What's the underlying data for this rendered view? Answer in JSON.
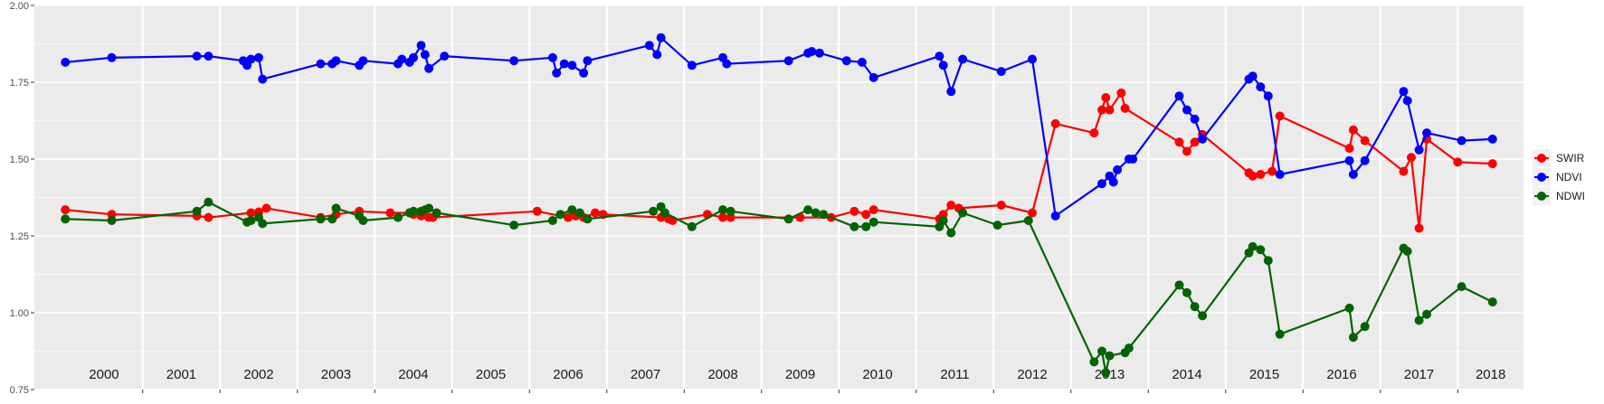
{
  "chart_data": {
    "type": "line",
    "title": "",
    "xlabel": "",
    "ylabel": "",
    "x_unit": "year (decimal)",
    "xlim": [
      1999.6,
      2018.85
    ],
    "ylim": [
      0.75,
      2.0
    ],
    "y_ticks": [
      0.75,
      1.0,
      1.25,
      1.5,
      1.75,
      2.0
    ],
    "y_tick_labels": [
      "0.75",
      "1.00",
      "1.25",
      "1.50",
      "1.75",
      "2.00"
    ],
    "year_labels": [
      "2000",
      "2001",
      "2002",
      "2003",
      "2004",
      "2005",
      "2006",
      "2007",
      "2008",
      "2009",
      "2010",
      "2011",
      "2012",
      "2013",
      "2014",
      "2015",
      "2016",
      "2017",
      "2018"
    ],
    "year_boundaries": [
      2001,
      2002,
      2003,
      2004,
      2005,
      2006,
      2007,
      2008,
      2009,
      2010,
      2011,
      2012,
      2013,
      2014,
      2015,
      2016,
      2017,
      2018
    ],
    "grid": true,
    "legend_position": "right",
    "series": [
      {
        "name": "SWIR",
        "color": "#ff0000",
        "points": [
          [
            2000.0,
            1.335
          ],
          [
            2000.6,
            1.32
          ],
          [
            2001.7,
            1.315
          ],
          [
            2001.85,
            1.31
          ],
          [
            2002.4,
            1.325
          ],
          [
            2002.5,
            1.328
          ],
          [
            2002.6,
            1.34
          ],
          [
            2003.3,
            1.31
          ],
          [
            2003.5,
            1.32
          ],
          [
            2003.8,
            1.33
          ],
          [
            2004.2,
            1.325
          ],
          [
            2004.45,
            1.325
          ],
          [
            2004.5,
            1.32
          ],
          [
            2004.6,
            1.315
          ],
          [
            2004.7,
            1.31
          ],
          [
            2004.75,
            1.31
          ],
          [
            2006.1,
            1.33
          ],
          [
            2006.5,
            1.31
          ],
          [
            2006.6,
            1.315
          ],
          [
            2006.7,
            1.31
          ],
          [
            2006.85,
            1.325
          ],
          [
            2006.95,
            1.32
          ],
          [
            2007.7,
            1.31
          ],
          [
            2007.8,
            1.305
          ],
          [
            2007.85,
            1.3
          ],
          [
            2008.3,
            1.32
          ],
          [
            2008.5,
            1.31
          ],
          [
            2008.6,
            1.31
          ],
          [
            2009.5,
            1.31
          ],
          [
            2009.9,
            1.31
          ],
          [
            2010.2,
            1.33
          ],
          [
            2010.35,
            1.32
          ],
          [
            2010.45,
            1.335
          ],
          [
            2011.3,
            1.305
          ],
          [
            2011.35,
            1.32
          ],
          [
            2011.45,
            1.35
          ],
          [
            2011.55,
            1.34
          ],
          [
            2012.1,
            1.35
          ],
          [
            2012.5,
            1.325
          ],
          [
            2012.8,
            1.615
          ],
          [
            2013.3,
            1.585
          ],
          [
            2013.4,
            1.66
          ],
          [
            2013.45,
            1.7
          ],
          [
            2013.5,
            1.66
          ],
          [
            2013.65,
            1.715
          ],
          [
            2013.7,
            1.665
          ],
          [
            2014.4,
            1.555
          ],
          [
            2014.5,
            1.525
          ],
          [
            2014.6,
            1.555
          ],
          [
            2014.7,
            1.58
          ],
          [
            2015.3,
            1.455
          ],
          [
            2015.35,
            1.445
          ],
          [
            2015.45,
            1.45
          ],
          [
            2015.6,
            1.46
          ],
          [
            2015.7,
            1.64
          ],
          [
            2016.6,
            1.535
          ],
          [
            2016.65,
            1.595
          ],
          [
            2016.8,
            1.56
          ],
          [
            2017.3,
            1.46
          ],
          [
            2017.4,
            1.505
          ],
          [
            2017.5,
            1.275
          ],
          [
            2017.6,
            1.565
          ],
          [
            2018.0,
            1.49
          ],
          [
            2018.45,
            1.485
          ]
        ]
      },
      {
        "name": "NDVI",
        "color": "#0000ff",
        "points": [
          [
            2000.0,
            1.815
          ],
          [
            2000.6,
            1.83
          ],
          [
            2001.7,
            1.835
          ],
          [
            2001.85,
            1.835
          ],
          [
            2002.3,
            1.82
          ],
          [
            2002.35,
            1.805
          ],
          [
            2002.4,
            1.825
          ],
          [
            2002.5,
            1.83
          ],
          [
            2002.55,
            1.76
          ],
          [
            2003.3,
            1.81
          ],
          [
            2003.45,
            1.81
          ],
          [
            2003.5,
            1.82
          ],
          [
            2003.8,
            1.805
          ],
          [
            2003.85,
            1.82
          ],
          [
            2004.3,
            1.81
          ],
          [
            2004.35,
            1.825
          ],
          [
            2004.45,
            1.815
          ],
          [
            2004.5,
            1.83
          ],
          [
            2004.6,
            1.87
          ],
          [
            2004.65,
            1.84
          ],
          [
            2004.7,
            1.795
          ],
          [
            2004.9,
            1.835
          ],
          [
            2005.8,
            1.82
          ],
          [
            2006.3,
            1.83
          ],
          [
            2006.35,
            1.78
          ],
          [
            2006.45,
            1.81
          ],
          [
            2006.55,
            1.805
          ],
          [
            2006.7,
            1.78
          ],
          [
            2006.75,
            1.82
          ],
          [
            2007.55,
            1.87
          ],
          [
            2007.65,
            1.84
          ],
          [
            2007.7,
            1.895
          ],
          [
            2008.1,
            1.805
          ],
          [
            2008.5,
            1.83
          ],
          [
            2008.55,
            1.81
          ],
          [
            2009.35,
            1.82
          ],
          [
            2009.6,
            1.845
          ],
          [
            2009.65,
            1.85
          ],
          [
            2009.75,
            1.845
          ],
          [
            2010.1,
            1.82
          ],
          [
            2010.3,
            1.815
          ],
          [
            2010.45,
            1.765
          ],
          [
            2011.3,
            1.835
          ],
          [
            2011.35,
            1.805
          ],
          [
            2011.45,
            1.72
          ],
          [
            2011.6,
            1.825
          ],
          [
            2012.1,
            1.785
          ],
          [
            2012.5,
            1.825
          ],
          [
            2012.8,
            1.315
          ],
          [
            2013.4,
            1.42
          ],
          [
            2013.5,
            1.445
          ],
          [
            2013.55,
            1.425
          ],
          [
            2013.6,
            1.465
          ],
          [
            2013.75,
            1.5
          ],
          [
            2013.8,
            1.5
          ],
          [
            2014.4,
            1.705
          ],
          [
            2014.5,
            1.66
          ],
          [
            2014.6,
            1.63
          ],
          [
            2014.7,
            1.565
          ],
          [
            2015.3,
            1.76
          ],
          [
            2015.35,
            1.77
          ],
          [
            2015.45,
            1.735
          ],
          [
            2015.55,
            1.705
          ],
          [
            2015.7,
            1.45
          ],
          [
            2016.6,
            1.495
          ],
          [
            2016.65,
            1.45
          ],
          [
            2016.8,
            1.495
          ],
          [
            2017.3,
            1.72
          ],
          [
            2017.35,
            1.69
          ],
          [
            2017.5,
            1.53
          ],
          [
            2017.6,
            1.585
          ],
          [
            2018.05,
            1.56
          ],
          [
            2018.45,
            1.565
          ]
        ]
      },
      {
        "name": "NDWI",
        "color": "#006400",
        "points": [
          [
            2000.0,
            1.305
          ],
          [
            2000.6,
            1.3
          ],
          [
            2001.7,
            1.33
          ],
          [
            2001.85,
            1.36
          ],
          [
            2002.35,
            1.295
          ],
          [
            2002.4,
            1.3
          ],
          [
            2002.5,
            1.31
          ],
          [
            2002.55,
            1.29
          ],
          [
            2003.3,
            1.305
          ],
          [
            2003.45,
            1.305
          ],
          [
            2003.5,
            1.34
          ],
          [
            2003.8,
            1.315
          ],
          [
            2003.85,
            1.3
          ],
          [
            2004.3,
            1.31
          ],
          [
            2004.45,
            1.325
          ],
          [
            2004.5,
            1.33
          ],
          [
            2004.6,
            1.33
          ],
          [
            2004.65,
            1.335
          ],
          [
            2004.7,
            1.34
          ],
          [
            2004.8,
            1.325
          ],
          [
            2005.8,
            1.285
          ],
          [
            2006.3,
            1.3
          ],
          [
            2006.4,
            1.32
          ],
          [
            2006.55,
            1.335
          ],
          [
            2006.65,
            1.325
          ],
          [
            2006.75,
            1.305
          ],
          [
            2007.6,
            1.33
          ],
          [
            2007.7,
            1.345
          ],
          [
            2007.75,
            1.325
          ],
          [
            2008.1,
            1.28
          ],
          [
            2008.5,
            1.335
          ],
          [
            2008.6,
            1.33
          ],
          [
            2009.35,
            1.305
          ],
          [
            2009.6,
            1.335
          ],
          [
            2009.7,
            1.325
          ],
          [
            2009.8,
            1.32
          ],
          [
            2010.2,
            1.28
          ],
          [
            2010.35,
            1.28
          ],
          [
            2010.45,
            1.295
          ],
          [
            2011.3,
            1.28
          ],
          [
            2011.35,
            1.3
          ],
          [
            2011.45,
            1.26
          ],
          [
            2011.6,
            1.325
          ],
          [
            2012.05,
            1.285
          ],
          [
            2012.45,
            1.3
          ],
          [
            2013.3,
            0.84
          ],
          [
            2013.4,
            0.875
          ],
          [
            2013.45,
            0.805
          ],
          [
            2013.5,
            0.86
          ],
          [
            2013.7,
            0.87
          ],
          [
            2013.75,
            0.885
          ],
          [
            2014.4,
            1.09
          ],
          [
            2014.5,
            1.065
          ],
          [
            2014.6,
            1.02
          ],
          [
            2014.7,
            0.99
          ],
          [
            2015.3,
            1.195
          ],
          [
            2015.35,
            1.215
          ],
          [
            2015.45,
            1.205
          ],
          [
            2015.55,
            1.17
          ],
          [
            2015.7,
            0.93
          ],
          [
            2016.6,
            1.015
          ],
          [
            2016.65,
            0.92
          ],
          [
            2016.8,
            0.955
          ],
          [
            2017.3,
            1.21
          ],
          [
            2017.35,
            1.2
          ],
          [
            2017.5,
            0.975
          ],
          [
            2017.6,
            0.995
          ],
          [
            2018.05,
            1.085
          ],
          [
            2018.45,
            1.035
          ]
        ]
      }
    ]
  }
}
